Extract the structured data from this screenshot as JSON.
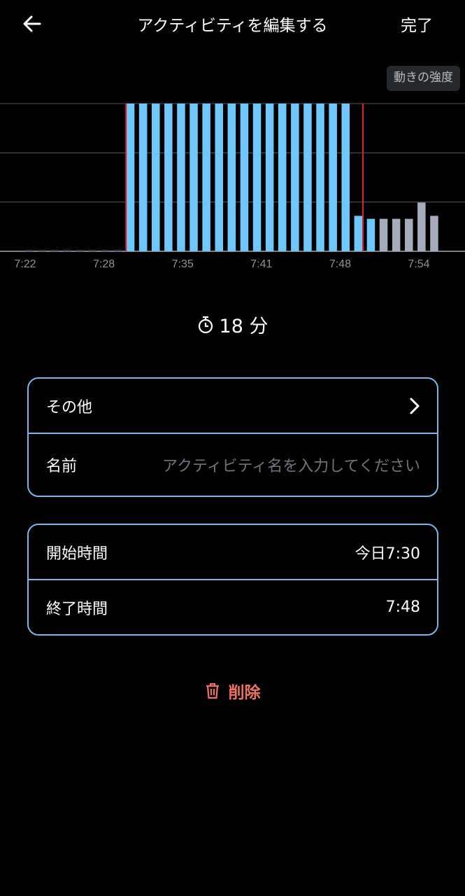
{
  "header": {
    "title": "アクティビティを編集する",
    "done_label": "完了",
    "back_icon": "arrow-left-icon"
  },
  "legend": {
    "label": "動きの強度"
  },
  "chart_data": {
    "type": "bar",
    "ylim": [
      0,
      1
    ],
    "grid": true,
    "x_tick_labels": [
      "7:22",
      "7:28",
      "7:35",
      "7:41",
      "7:48",
      "7:54"
    ],
    "values": [
      0.01,
      0.01,
      0.01,
      0.01,
      0.01,
      0.01,
      0.01,
      0.01,
      1,
      1,
      1,
      1,
      1,
      1,
      1,
      1,
      1,
      1,
      1,
      1,
      1,
      1,
      1,
      1,
      1,
      1,
      0.24,
      0.22,
      0.22,
      0.22,
      0.22,
      0.33,
      0.24
    ],
    "selection": {
      "start": "7:30",
      "end": "7:48"
    },
    "colors": {
      "selected": "#6fc7fb",
      "unselected": "#a8acba",
      "selection_line": "#e0262b",
      "grid": "#55585d",
      "baseline": "#7a7d82"
    }
  },
  "duration": {
    "value": "18 分",
    "icon": "timer-icon"
  },
  "activity_card": {
    "type_label": "その他",
    "name_label": "名前",
    "name_placeholder": "アクティビティ名を入力してください"
  },
  "time_card": {
    "start_label": "開始時間",
    "start_value": "今日7:30",
    "end_label": "終了時間",
    "end_value": "7:48"
  },
  "delete": {
    "label": "削除",
    "color": "#f07262"
  },
  "colors": {
    "card_border": "#7fb6e3",
    "background": "#000000"
  }
}
